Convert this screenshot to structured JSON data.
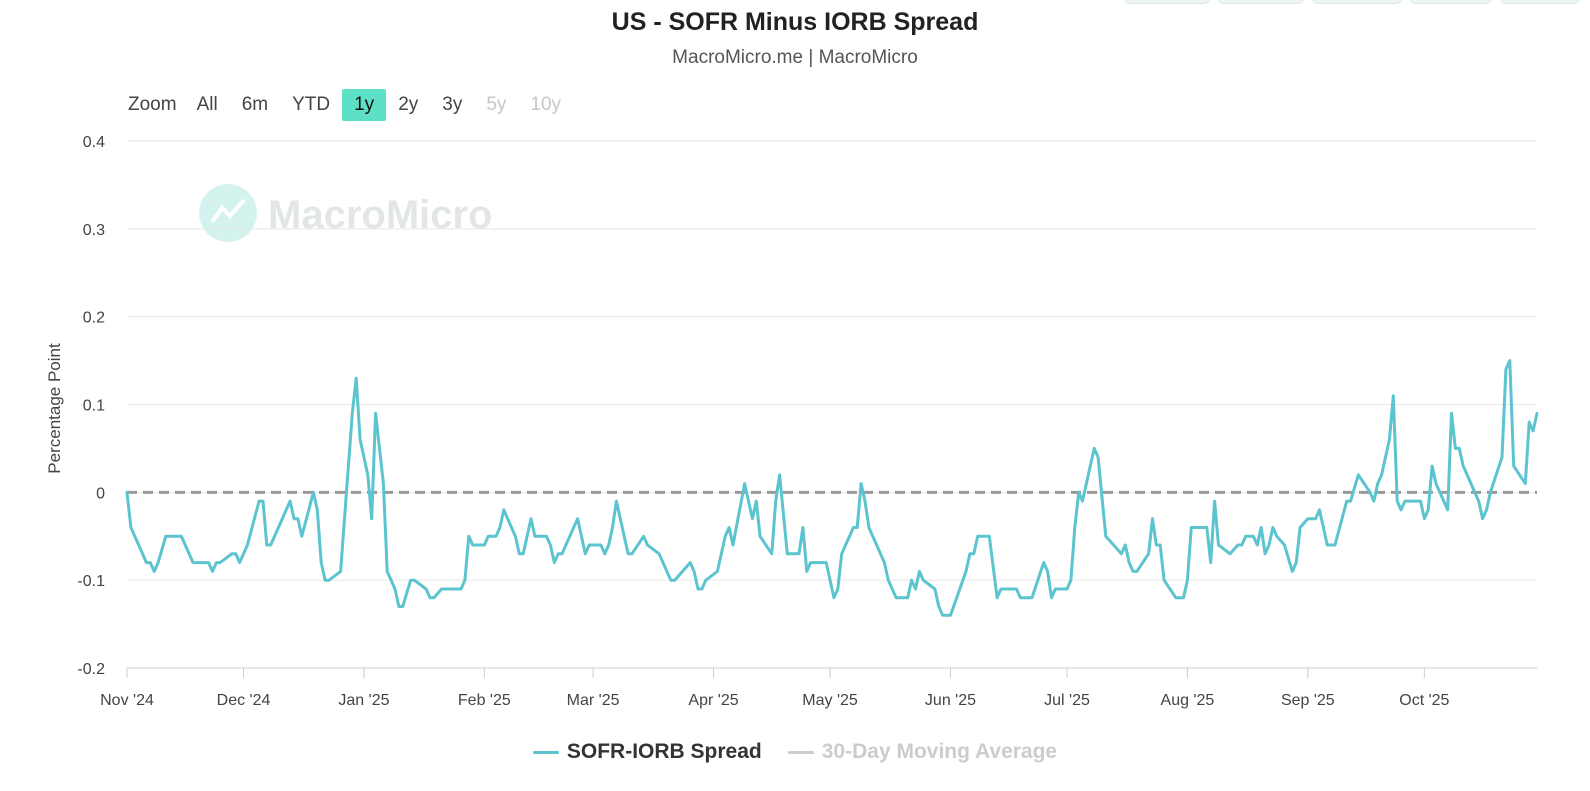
{
  "header": {
    "title": "US - SOFR Minus IORB Spread",
    "subtitle": "MacroMicro.me | MacroMicro"
  },
  "zoom": {
    "label": "Zoom",
    "buttons": [
      {
        "label": "All",
        "state": "normal"
      },
      {
        "label": "6m",
        "state": "normal"
      },
      {
        "label": "YTD",
        "state": "normal"
      },
      {
        "label": "1y",
        "state": "active"
      },
      {
        "label": "2y",
        "state": "normal"
      },
      {
        "label": "3y",
        "state": "normal"
      },
      {
        "label": "5y",
        "state": "disabled"
      },
      {
        "label": "10y",
        "state": "disabled"
      }
    ]
  },
  "watermark": {
    "text": "MacroMicro"
  },
  "colors": {
    "series": "#5bc4cf",
    "moving_average": "#999999",
    "legend_hidden": "#cccccc"
  },
  "chart_data": {
    "type": "line",
    "title": "US - SOFR Minus IORB Spread",
    "xlabel": "",
    "ylabel": "Percentage Point",
    "ylim": [
      -0.2,
      0.4
    ],
    "yticks": [
      -0.2,
      -0.1,
      0,
      0.1,
      0.2,
      0.3,
      0.4
    ],
    "ytick_labels": [
      "-0.2",
      "-0.1",
      "0",
      "0.1",
      "0.2",
      "0.3",
      "0.4"
    ],
    "xlim": [
      "2024-11-01",
      "2025-10-30"
    ],
    "xticks": [
      {
        "date": "2024-11-01",
        "label": "Nov '24"
      },
      {
        "date": "2024-12-01",
        "label": "Dec '24"
      },
      {
        "date": "2025-01-01",
        "label": "Jan '25"
      },
      {
        "date": "2025-02-01",
        "label": "Feb '25"
      },
      {
        "date": "2025-03-01",
        "label": "Mar '25"
      },
      {
        "date": "2025-04-01",
        "label": "Apr '25"
      },
      {
        "date": "2025-05-01",
        "label": "May '25"
      },
      {
        "date": "2025-06-01",
        "label": "Jun '25"
      },
      {
        "date": "2025-07-01",
        "label": "Jul '25"
      },
      {
        "date": "2025-08-01",
        "label": "Aug '25"
      },
      {
        "date": "2025-09-01",
        "label": "Sep '25"
      },
      {
        "date": "2025-10-01",
        "label": "Oct '25"
      }
    ],
    "grid": true,
    "legend_position": "bottom-center",
    "series": [
      {
        "name": "SOFR-IORB Spread",
        "visible": true,
        "points": [
          [
            "2024-11-01",
            0.0
          ],
          [
            "2024-11-02",
            -0.04
          ],
          [
            "2024-11-04",
            -0.06
          ],
          [
            "2024-11-06",
            -0.08
          ],
          [
            "2024-11-07",
            -0.08
          ],
          [
            "2024-11-08",
            -0.09
          ],
          [
            "2024-11-09",
            -0.08
          ],
          [
            "2024-11-11",
            -0.05
          ],
          [
            "2024-11-15",
            -0.05
          ],
          [
            "2024-11-18",
            -0.08
          ],
          [
            "2024-11-22",
            -0.08
          ],
          [
            "2024-11-23",
            -0.09
          ],
          [
            "2024-11-24",
            -0.08
          ],
          [
            "2024-11-25",
            -0.08
          ],
          [
            "2024-11-28",
            -0.07
          ],
          [
            "2024-11-29",
            -0.07
          ],
          [
            "2024-11-30",
            -0.08
          ],
          [
            "2024-12-02",
            -0.06
          ],
          [
            "2024-12-05",
            -0.01
          ],
          [
            "2024-12-06",
            -0.01
          ],
          [
            "2024-12-07",
            -0.06
          ],
          [
            "2024-12-08",
            -0.06
          ],
          [
            "2024-12-13",
            -0.01
          ],
          [
            "2024-12-14",
            -0.03
          ],
          [
            "2024-12-15",
            -0.03
          ],
          [
            "2024-12-16",
            -0.05
          ],
          [
            "2024-12-19",
            0.0
          ],
          [
            "2024-12-20",
            -0.02
          ],
          [
            "2024-12-21",
            -0.08
          ],
          [
            "2024-12-22",
            -0.1
          ],
          [
            "2024-12-23",
            -0.1
          ],
          [
            "2024-12-26",
            -0.09
          ],
          [
            "2024-12-29",
            0.09
          ],
          [
            "2024-12-30",
            0.13
          ],
          [
            "2024-12-31",
            0.06
          ],
          [
            "2025-01-02",
            0.02
          ],
          [
            "2025-01-03",
            -0.03
          ],
          [
            "2025-01-04",
            0.09
          ],
          [
            "2025-01-06",
            0.01
          ],
          [
            "2025-01-07",
            -0.09
          ],
          [
            "2025-01-09",
            -0.11
          ],
          [
            "2025-01-10",
            -0.13
          ],
          [
            "2025-01-11",
            -0.13
          ],
          [
            "2025-01-13",
            -0.1
          ],
          [
            "2025-01-14",
            -0.1
          ],
          [
            "2025-01-17",
            -0.11
          ],
          [
            "2025-01-18",
            -0.12
          ],
          [
            "2025-01-19",
            -0.12
          ],
          [
            "2025-01-21",
            -0.11
          ],
          [
            "2025-01-26",
            -0.11
          ],
          [
            "2025-01-27",
            -0.1
          ],
          [
            "2025-01-28",
            -0.05
          ],
          [
            "2025-01-29",
            -0.06
          ],
          [
            "2025-02-01",
            -0.06
          ],
          [
            "2025-02-02",
            -0.05
          ],
          [
            "2025-02-04",
            -0.05
          ],
          [
            "2025-02-05",
            -0.04
          ],
          [
            "2025-02-06",
            -0.02
          ],
          [
            "2025-02-09",
            -0.05
          ],
          [
            "2025-02-10",
            -0.07
          ],
          [
            "2025-02-11",
            -0.07
          ],
          [
            "2025-02-13",
            -0.03
          ],
          [
            "2025-02-14",
            -0.05
          ],
          [
            "2025-02-17",
            -0.05
          ],
          [
            "2025-02-18",
            -0.06
          ],
          [
            "2025-02-19",
            -0.08
          ],
          [
            "2025-02-20",
            -0.07
          ],
          [
            "2025-02-21",
            -0.07
          ],
          [
            "2025-02-25",
            -0.03
          ],
          [
            "2025-02-27",
            -0.07
          ],
          [
            "2025-02-28",
            -0.06
          ],
          [
            "2025-03-03",
            -0.06
          ],
          [
            "2025-03-04",
            -0.07
          ],
          [
            "2025-03-05",
            -0.06
          ],
          [
            "2025-03-06",
            -0.04
          ],
          [
            "2025-03-07",
            -0.01
          ],
          [
            "2025-03-08",
            -0.03
          ],
          [
            "2025-03-10",
            -0.07
          ],
          [
            "2025-03-11",
            -0.07
          ],
          [
            "2025-03-14",
            -0.05
          ],
          [
            "2025-03-15",
            -0.06
          ],
          [
            "2025-03-18",
            -0.07
          ],
          [
            "2025-03-21",
            -0.1
          ],
          [
            "2025-03-22",
            -0.1
          ],
          [
            "2025-03-26",
            -0.08
          ],
          [
            "2025-03-27",
            -0.09
          ],
          [
            "2025-03-28",
            -0.11
          ],
          [
            "2025-03-29",
            -0.11
          ],
          [
            "2025-03-30",
            -0.1
          ],
          [
            "2025-04-02",
            -0.09
          ],
          [
            "2025-04-04",
            -0.05
          ],
          [
            "2025-04-05",
            -0.04
          ],
          [
            "2025-04-06",
            -0.06
          ],
          [
            "2025-04-09",
            0.01
          ],
          [
            "2025-04-11",
            -0.03
          ],
          [
            "2025-04-12",
            -0.01
          ],
          [
            "2025-04-13",
            -0.05
          ],
          [
            "2025-04-16",
            -0.07
          ],
          [
            "2025-04-17",
            -0.01
          ],
          [
            "2025-04-18",
            0.02
          ],
          [
            "2025-04-20",
            -0.07
          ],
          [
            "2025-04-23",
            -0.07
          ],
          [
            "2025-04-24",
            -0.04
          ],
          [
            "2025-04-25",
            -0.09
          ],
          [
            "2025-04-26",
            -0.08
          ],
          [
            "2025-04-30",
            -0.08
          ],
          [
            "2025-05-02",
            -0.12
          ],
          [
            "2025-05-03",
            -0.11
          ],
          [
            "2025-05-04",
            -0.07
          ],
          [
            "2025-05-07",
            -0.04
          ],
          [
            "2025-05-08",
            -0.04
          ],
          [
            "2025-05-09",
            0.01
          ],
          [
            "2025-05-10",
            -0.01
          ],
          [
            "2025-05-11",
            -0.04
          ],
          [
            "2025-05-15",
            -0.08
          ],
          [
            "2025-05-16",
            -0.1
          ],
          [
            "2025-05-18",
            -0.12
          ],
          [
            "2025-05-21",
            -0.12
          ],
          [
            "2025-05-22",
            -0.1
          ],
          [
            "2025-05-23",
            -0.11
          ],
          [
            "2025-05-24",
            -0.09
          ],
          [
            "2025-05-25",
            -0.1
          ],
          [
            "2025-05-28",
            -0.11
          ],
          [
            "2025-05-29",
            -0.13
          ],
          [
            "2025-05-30",
            -0.14
          ],
          [
            "2025-06-01",
            -0.14
          ],
          [
            "2025-06-05",
            -0.09
          ],
          [
            "2025-06-06",
            -0.07
          ],
          [
            "2025-06-07",
            -0.07
          ],
          [
            "2025-06-08",
            -0.05
          ],
          [
            "2025-06-11",
            -0.05
          ],
          [
            "2025-06-13",
            -0.12
          ],
          [
            "2025-06-14",
            -0.11
          ],
          [
            "2025-06-18",
            -0.11
          ],
          [
            "2025-06-19",
            -0.12
          ],
          [
            "2025-06-22",
            -0.12
          ],
          [
            "2025-06-25",
            -0.08
          ],
          [
            "2025-06-26",
            -0.09
          ],
          [
            "2025-06-27",
            -0.12
          ],
          [
            "2025-06-28",
            -0.11
          ],
          [
            "2025-07-01",
            -0.11
          ],
          [
            "2025-07-02",
            -0.1
          ],
          [
            "2025-07-03",
            -0.04
          ],
          [
            "2025-07-04",
            0.0
          ],
          [
            "2025-07-05",
            -0.01
          ],
          [
            "2025-07-08",
            0.05
          ],
          [
            "2025-07-09",
            0.04
          ],
          [
            "2025-07-11",
            -0.05
          ],
          [
            "2025-07-15",
            -0.07
          ],
          [
            "2025-07-16",
            -0.06
          ],
          [
            "2025-07-17",
            -0.08
          ],
          [
            "2025-07-18",
            -0.09
          ],
          [
            "2025-07-19",
            -0.09
          ],
          [
            "2025-07-22",
            -0.07
          ],
          [
            "2025-07-23",
            -0.03
          ],
          [
            "2025-07-24",
            -0.06
          ],
          [
            "2025-07-25",
            -0.06
          ],
          [
            "2025-07-26",
            -0.1
          ],
          [
            "2025-07-29",
            -0.12
          ],
          [
            "2025-07-31",
            -0.12
          ],
          [
            "2025-08-01",
            -0.1
          ],
          [
            "2025-08-02",
            -0.04
          ],
          [
            "2025-08-06",
            -0.04
          ],
          [
            "2025-08-07",
            -0.08
          ],
          [
            "2025-08-08",
            -0.01
          ],
          [
            "2025-08-09",
            -0.06
          ],
          [
            "2025-08-12",
            -0.07
          ],
          [
            "2025-08-14",
            -0.06
          ],
          [
            "2025-08-15",
            -0.06
          ],
          [
            "2025-08-16",
            -0.05
          ],
          [
            "2025-08-18",
            -0.05
          ],
          [
            "2025-08-19",
            -0.06
          ],
          [
            "2025-08-20",
            -0.04
          ],
          [
            "2025-08-21",
            -0.07
          ],
          [
            "2025-08-22",
            -0.06
          ],
          [
            "2025-08-23",
            -0.04
          ],
          [
            "2025-08-24",
            -0.05
          ],
          [
            "2025-08-26",
            -0.06
          ],
          [
            "2025-08-28",
            -0.09
          ],
          [
            "2025-08-29",
            -0.08
          ],
          [
            "2025-08-30",
            -0.04
          ],
          [
            "2025-09-01",
            -0.03
          ],
          [
            "2025-09-03",
            -0.03
          ],
          [
            "2025-09-04",
            -0.02
          ],
          [
            "2025-09-05",
            -0.04
          ],
          [
            "2025-09-06",
            -0.06
          ],
          [
            "2025-09-08",
            -0.06
          ],
          [
            "2025-09-11",
            -0.01
          ],
          [
            "2025-09-12",
            -0.01
          ],
          [
            "2025-09-14",
            0.02
          ],
          [
            "2025-09-17",
            0.0
          ],
          [
            "2025-09-18",
            -0.01
          ],
          [
            "2025-09-19",
            0.01
          ],
          [
            "2025-09-20",
            0.02
          ],
          [
            "2025-09-22",
            0.06
          ],
          [
            "2025-09-23",
            0.11
          ],
          [
            "2025-09-24",
            -0.01
          ],
          [
            "2025-09-25",
            -0.02
          ],
          [
            "2025-09-26",
            -0.01
          ],
          [
            "2025-09-30",
            -0.01
          ],
          [
            "2025-10-01",
            -0.03
          ],
          [
            "2025-10-02",
            -0.02
          ],
          [
            "2025-10-03",
            0.03
          ],
          [
            "2025-10-04",
            0.01
          ],
          [
            "2025-10-07",
            -0.02
          ],
          [
            "2025-10-08",
            0.09
          ],
          [
            "2025-10-09",
            0.05
          ],
          [
            "2025-10-10",
            0.05
          ],
          [
            "2025-10-11",
            0.03
          ],
          [
            "2025-10-13",
            0.01
          ],
          [
            "2025-10-15",
            -0.01
          ],
          [
            "2025-10-16",
            -0.03
          ],
          [
            "2025-10-17",
            -0.02
          ],
          [
            "2025-10-18",
            0.0
          ],
          [
            "2025-10-21",
            0.04
          ],
          [
            "2025-10-22",
            0.14
          ],
          [
            "2025-10-23",
            0.15
          ],
          [
            "2025-10-24",
            0.03
          ],
          [
            "2025-10-27",
            0.01
          ],
          [
            "2025-10-28",
            0.08
          ],
          [
            "2025-10-29",
            0.07
          ],
          [
            "2025-10-30",
            0.09
          ]
        ]
      },
      {
        "name": "30-Day Moving Average",
        "visible": false,
        "points": []
      }
    ],
    "reference_line": {
      "y": 0,
      "style": "dashed"
    }
  },
  "legend": {
    "items": [
      {
        "label": "SOFR-IORB Spread"
      },
      {
        "label": "30-Day Moving Average"
      }
    ]
  }
}
